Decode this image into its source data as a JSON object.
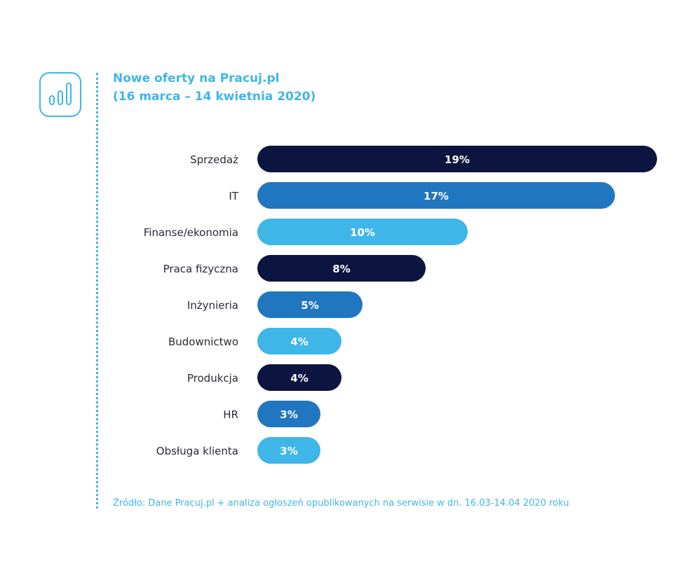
{
  "header": {
    "title_line1": "Nowe oferty na Pracuj.pl",
    "title_line2": "(16 marca – 14 kwietnia 2020)",
    "icon": "bar-chart-icon"
  },
  "colors": {
    "accent": "#3fb6e8",
    "navy": "#0c1540",
    "blue": "#2176c0",
    "light_blue": "#3fb6e8",
    "label_text": "#2a2a36",
    "bar_text": "#ffffff"
  },
  "chart_data": {
    "type": "bar",
    "orientation": "horizontal",
    "title": "Nowe oferty na Pracuj.pl (16 marca – 14 kwietnia 2020)",
    "categories": [
      "Sprzedaż",
      "IT",
      "Finanse/ekonomia",
      "Praca fizyczna",
      "Inżynieria",
      "Budownictwo",
      "Produkcja",
      "HR",
      "Obsługa klienta"
    ],
    "values": [
      19,
      17,
      10,
      8,
      5,
      4,
      4,
      3,
      3
    ],
    "value_labels": [
      "19%",
      "17%",
      "10%",
      "8%",
      "5%",
      "4%",
      "4%",
      "3%",
      "3%"
    ],
    "bar_colors": [
      "#0c1540",
      "#2176c0",
      "#3fb6e8",
      "#0c1540",
      "#2176c0",
      "#3fb6e8",
      "#0c1540",
      "#2176c0",
      "#3fb6e8"
    ],
    "unit": "%",
    "xlim": [
      0,
      19
    ],
    "grid": false,
    "legend": "none"
  },
  "footer": {
    "source": "Źródło: Dane Pracuj.pl + analiza ogłoszeń opublikowanych na serwisie w dn. 16.03-14.04 2020 roku"
  }
}
